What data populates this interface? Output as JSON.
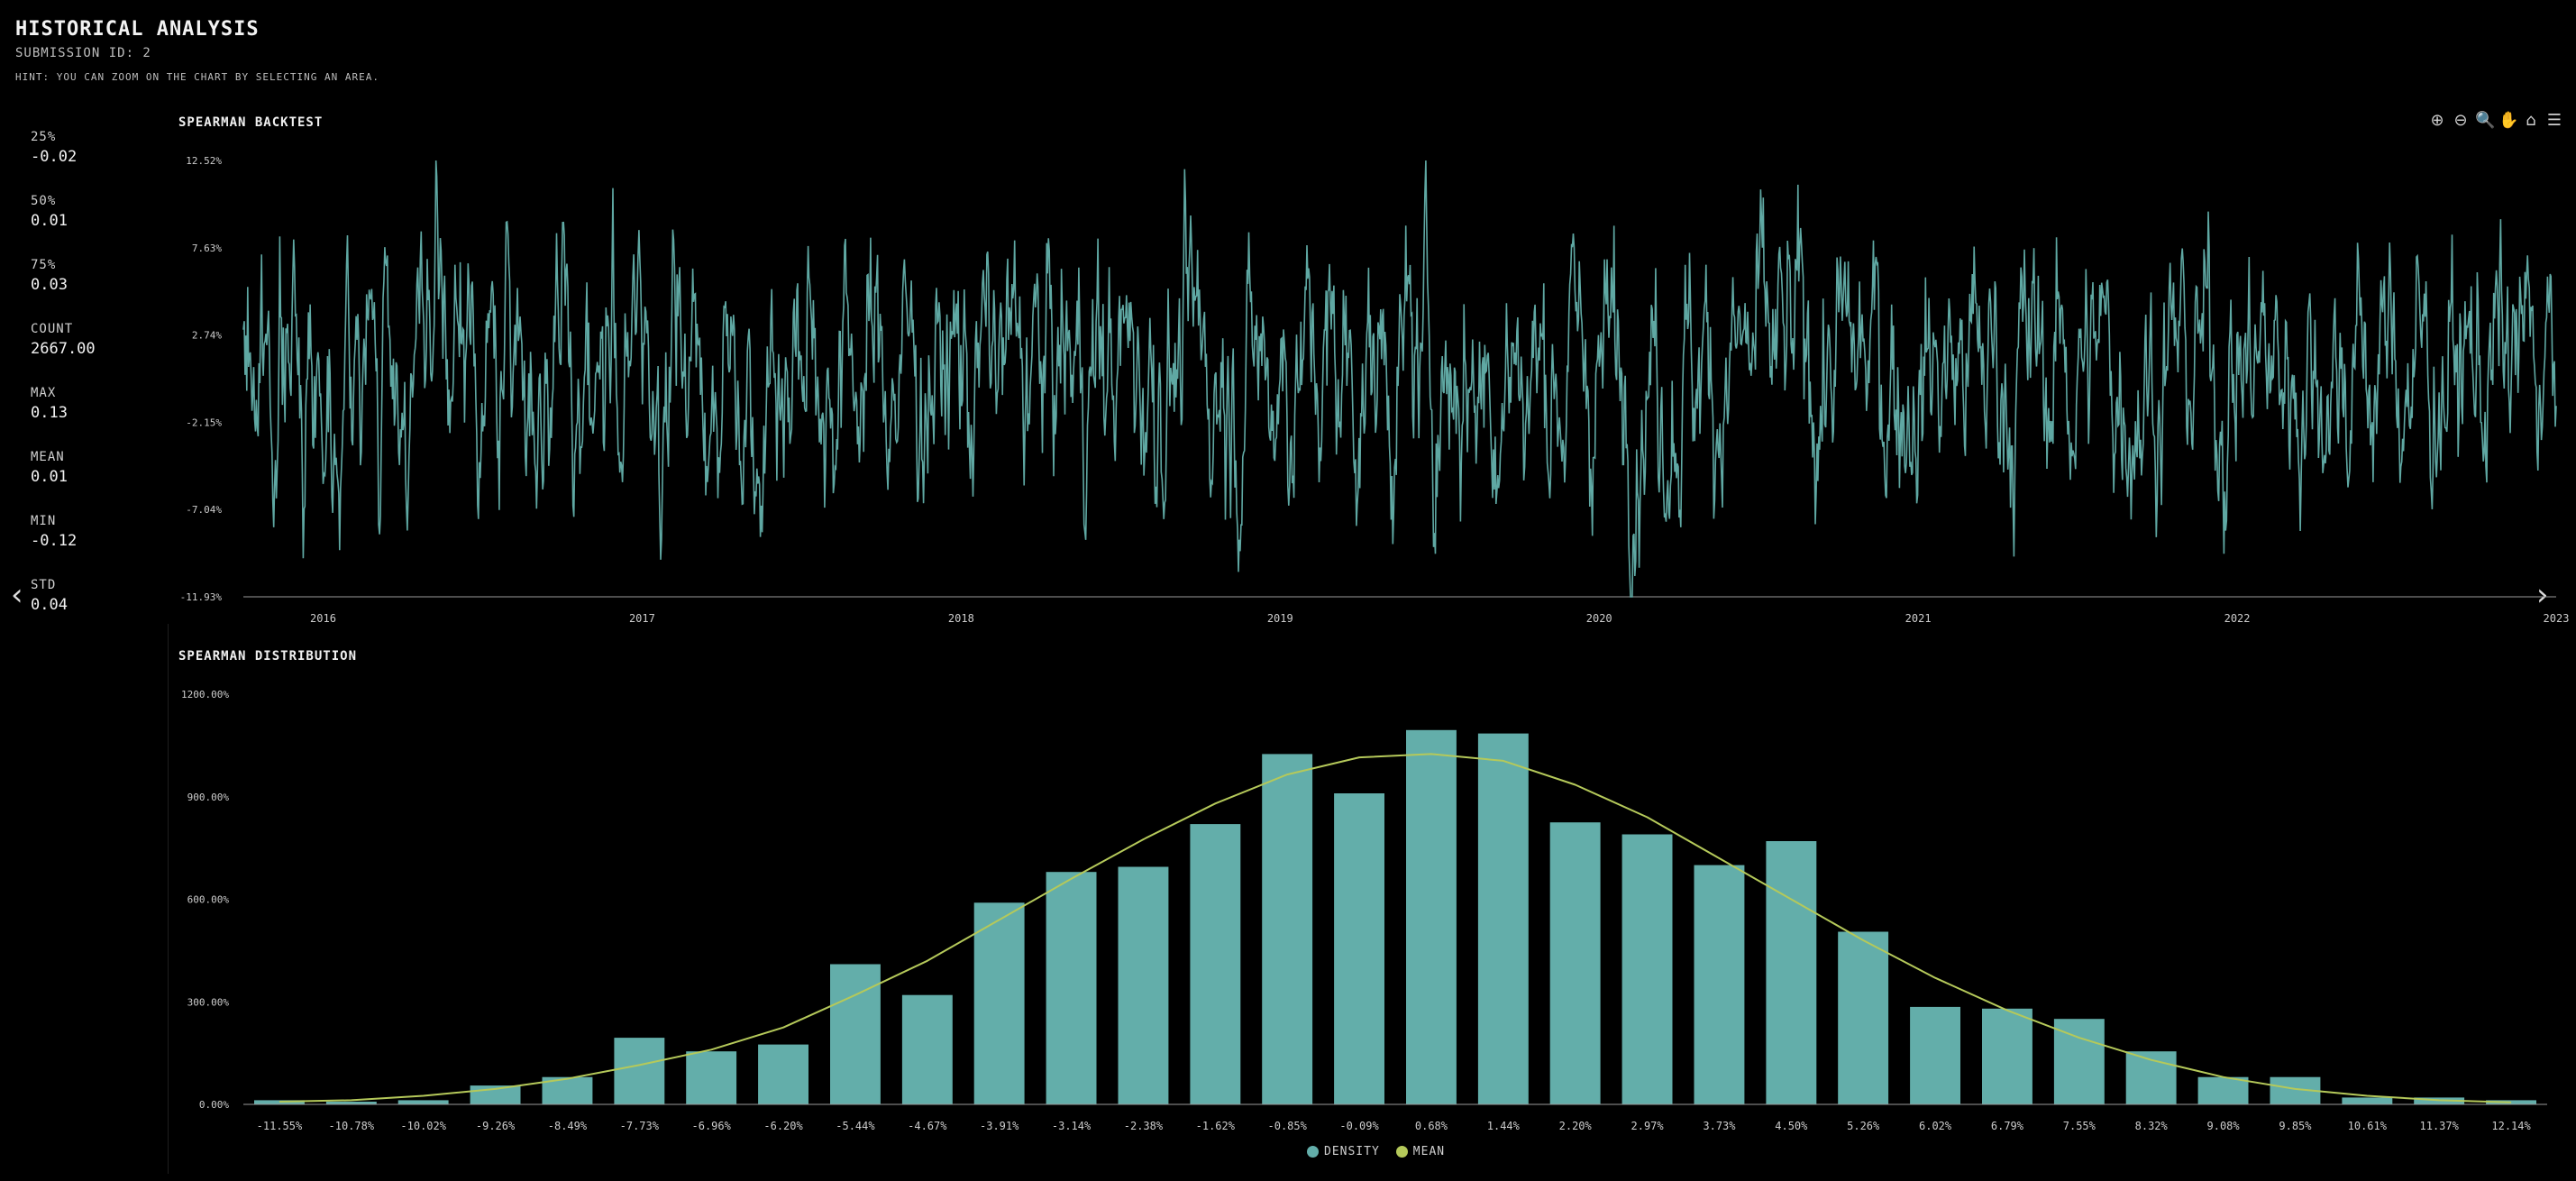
{
  "header": {
    "title": "HISTORICAL ANALYSIS",
    "submission": "SUBMISSION ID: 2",
    "hint": "HINT: YOU CAN ZOOM ON THE CHART BY SELECTING AN AREA."
  },
  "stats": [
    {
      "label": "25%",
      "value": "-0.02"
    },
    {
      "label": "50%",
      "value": "0.01"
    },
    {
      "label": "75%",
      "value": "0.03"
    },
    {
      "label": "COUNT",
      "value": "2667.00"
    },
    {
      "label": "MAX",
      "value": "0.13"
    },
    {
      "label": "MEAN",
      "value": "0.01"
    },
    {
      "label": "MIN",
      "value": "-0.12"
    },
    {
      "label": "STD",
      "value": "0.04"
    }
  ],
  "nav": {
    "prev": "‹",
    "next": "›"
  },
  "toolbar": [
    {
      "name": "zoom-in-icon",
      "glyph": "⊕"
    },
    {
      "name": "zoom-out-icon",
      "glyph": "⊖"
    },
    {
      "name": "magnifier-icon",
      "glyph": "🔍"
    },
    {
      "name": "pan-hand-icon",
      "glyph": "✋"
    },
    {
      "name": "home-icon",
      "glyph": "⌂"
    },
    {
      "name": "menu-icon",
      "glyph": "☰"
    }
  ],
  "colors": {
    "series": "#5fa8a3",
    "bar": "#63aeaa",
    "mean": "#b5c95a",
    "axis": "#cccccc"
  },
  "chart_data": [
    {
      "type": "line",
      "title": "SPEARMAN BACKTEST",
      "ylim": [
        -11.93,
        12.52
      ],
      "yticks": [
        "12.52%",
        "7.63%",
        "2.74%",
        "-2.15%",
        "-7.04%",
        "-11.93%"
      ],
      "yticks_values": [
        12.52,
        7.63,
        2.74,
        -2.15,
        -7.04,
        -11.93
      ],
      "xlim": [
        2015.75,
        2023.0
      ],
      "xticks": [
        "2016",
        "2017",
        "2018",
        "2019",
        "2020",
        "2021",
        "2022",
        "2023"
      ],
      "xticks_values": [
        2016,
        2017,
        2018,
        2019,
        2020,
        2021,
        2022,
        2023
      ],
      "series": {
        "count": 2667,
        "mean": 0.01,
        "std": 4.0,
        "min": -11.93,
        "max": 12.52
      }
    },
    {
      "type": "bar",
      "title": "SPEARMAN DISTRIBUTION",
      "ylim": [
        0,
        1200
      ],
      "yticks": [
        "1200.00%",
        "900.00%",
        "600.00%",
        "300.00%",
        "0.00%"
      ],
      "yticks_values": [
        1200,
        900,
        600,
        300,
        0
      ],
      "categories": [
        "-11.55%",
        "-10.78%",
        "-10.02%",
        "-9.26%",
        "-8.49%",
        "-7.73%",
        "-6.96%",
        "-6.20%",
        "-5.44%",
        "-4.67%",
        "-3.91%",
        "-3.14%",
        "-2.38%",
        "-1.62%",
        "-0.85%",
        "-0.09%",
        "0.68%",
        "1.44%",
        "2.20%",
        "2.97%",
        "3.73%",
        "4.50%",
        "5.26%",
        "6.02%",
        "6.79%",
        "7.55%",
        "8.32%",
        "9.08%",
        "9.85%",
        "10.61%",
        "11.37%",
        "12.14%"
      ],
      "series": [
        {
          "name": "DENSITY",
          "values": [
            12,
            8,
            12,
            55,
            80,
            195,
            155,
            175,
            410,
            320,
            590,
            680,
            695,
            820,
            1025,
            910,
            1095,
            1085,
            825,
            790,
            700,
            770,
            505,
            285,
            280,
            250,
            155,
            80,
            80,
            20,
            20,
            12
          ]
        },
        {
          "name": "MEAN",
          "values": [
            8,
            12,
            25,
            45,
            75,
            115,
            160,
            225,
            320,
            420,
            540,
            660,
            775,
            880,
            965,
            1015,
            1025,
            1005,
            935,
            840,
            720,
            600,
            480,
            370,
            275,
            195,
            130,
            80,
            45,
            25,
            12,
            6
          ]
        }
      ],
      "legend": [
        "DENSITY",
        "MEAN"
      ]
    }
  ]
}
